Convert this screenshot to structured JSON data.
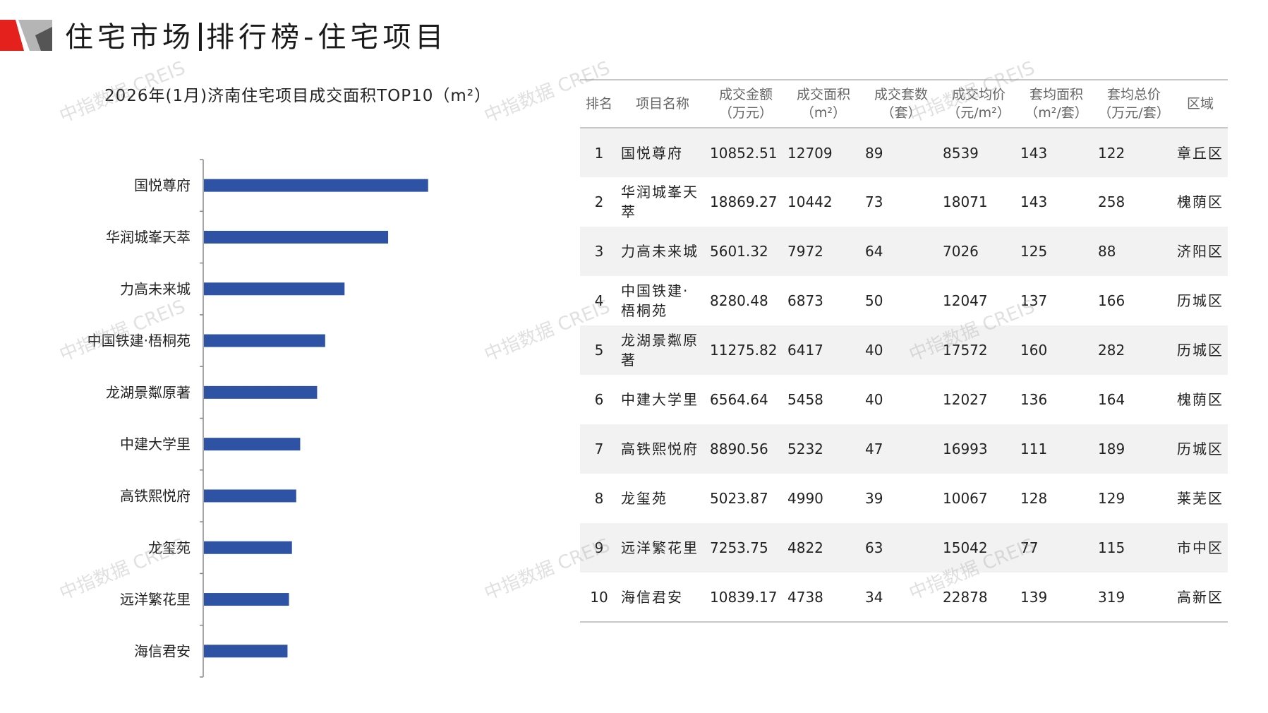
{
  "header": {
    "title_left": "住宅市场",
    "title_right": "排行榜-住宅项目"
  },
  "colors": {
    "brand_red": "#e4211d",
    "brand_grey": "#b5b5b5",
    "bar_blue": "#2e53a5"
  },
  "watermark": "中指数据 CREIS",
  "chart_data": {
    "type": "bar",
    "orientation": "horizontal",
    "title": "2026年(1月)济南住宅项目成交面积TOP10（m²）",
    "categories": [
      "国悦尊府",
      "华润城峯天萃",
      "力高未来城",
      "中国铁建·梧桐苑",
      "龙湖景粼原著",
      "中建大学里",
      "高铁熙悦府",
      "龙玺苑",
      "远洋繁花里",
      "海信君安"
    ],
    "values": [
      12709,
      10442,
      7972,
      6873,
      6417,
      5458,
      5232,
      4990,
      4822,
      4738
    ],
    "xlim": [
      0,
      20000
    ],
    "grid": false,
    "legend": "none"
  },
  "table": {
    "headers": [
      {
        "l1": "排名",
        "l2": ""
      },
      {
        "l1": "项目名称",
        "l2": ""
      },
      {
        "l1": "成交金额",
        "l2": "（万元）"
      },
      {
        "l1": "成交面积",
        "l2": "（m²）"
      },
      {
        "l1": "成交套数",
        "l2": "（套）"
      },
      {
        "l1": "成交均价",
        "l2": "（元/m²）"
      },
      {
        "l1": "套均面积",
        "l2": "（m²/套）"
      },
      {
        "l1": "套均总价",
        "l2": "（万元/套）"
      },
      {
        "l1": "区域",
        "l2": ""
      }
    ],
    "rows": [
      {
        "rank": "1",
        "name": "国悦尊府",
        "amount": "10852.51",
        "area": "12709",
        "units": "89",
        "price": "8539",
        "avg_area": "143",
        "avg_total": "122",
        "district": "章丘区"
      },
      {
        "rank": "2",
        "name": "华润城峯天萃",
        "amount": "18869.27",
        "area": "10442",
        "units": "73",
        "price": "18071",
        "avg_area": "143",
        "avg_total": "258",
        "district": "槐荫区"
      },
      {
        "rank": "3",
        "name": "力高未来城",
        "amount": "5601.32",
        "area": "7972",
        "units": "64",
        "price": "7026",
        "avg_area": "125",
        "avg_total": "88",
        "district": "济阳区"
      },
      {
        "rank": "4",
        "name": "中国铁建·梧桐苑",
        "amount": "8280.48",
        "area": "6873",
        "units": "50",
        "price": "12047",
        "avg_area": "137",
        "avg_total": "166",
        "district": "历城区"
      },
      {
        "rank": "5",
        "name": "龙湖景粼原著",
        "amount": "11275.82",
        "area": "6417",
        "units": "40",
        "price": "17572",
        "avg_area": "160",
        "avg_total": "282",
        "district": "历城区"
      },
      {
        "rank": "6",
        "name": "中建大学里",
        "amount": "6564.64",
        "area": "5458",
        "units": "40",
        "price": "12027",
        "avg_area": "136",
        "avg_total": "164",
        "district": "槐荫区"
      },
      {
        "rank": "7",
        "name": "高铁熙悦府",
        "amount": "8890.56",
        "area": "5232",
        "units": "47",
        "price": "16993",
        "avg_area": "111",
        "avg_total": "189",
        "district": "历城区"
      },
      {
        "rank": "8",
        "name": "龙玺苑",
        "amount": "5023.87",
        "area": "4990",
        "units": "39",
        "price": "10067",
        "avg_area": "128",
        "avg_total": "129",
        "district": "莱芜区"
      },
      {
        "rank": "9",
        "name": "远洋繁花里",
        "amount": "7253.75",
        "area": "4822",
        "units": "63",
        "price": "15042",
        "avg_area": "77",
        "avg_total": "115",
        "district": "市中区"
      },
      {
        "rank": "10",
        "name": "海信君安",
        "amount": "10839.17",
        "area": "4738",
        "units": "34",
        "price": "22878",
        "avg_area": "139",
        "avg_total": "319",
        "district": "高新区"
      }
    ]
  }
}
